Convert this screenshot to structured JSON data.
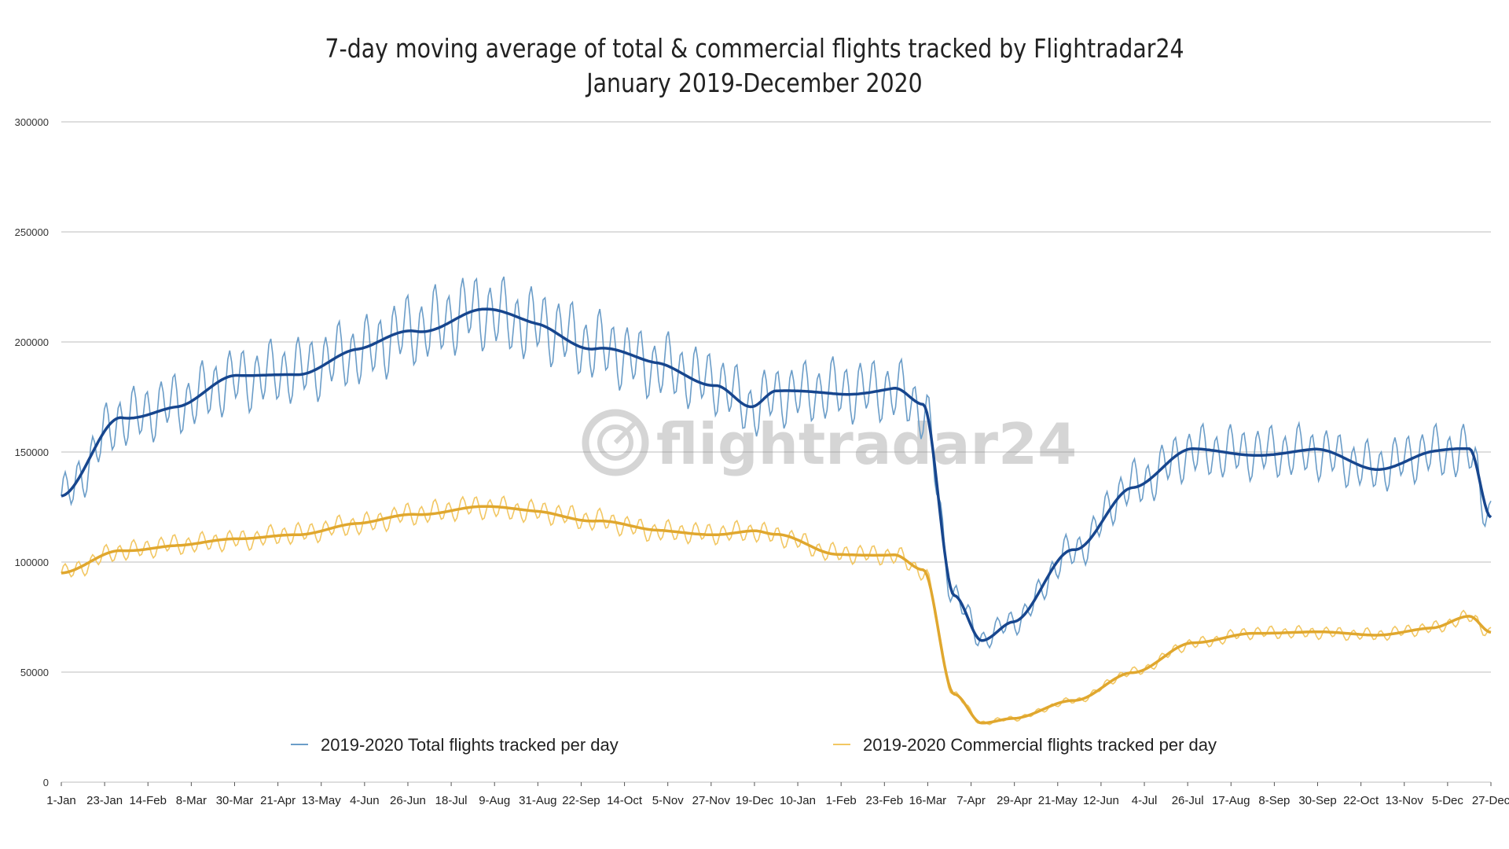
{
  "chart_data": {
    "type": "line",
    "title": "7-day moving average of total & commercial flights tracked by Flightradar24",
    "subtitle": "January 2019-December 2020",
    "xlabel": "",
    "ylabel": "",
    "ylim": [
      0,
      300000
    ],
    "yticks": [
      "0",
      "50000",
      "100000",
      "150000",
      "200000",
      "250000",
      "300000"
    ],
    "grid": true,
    "legend_position": "bottom",
    "watermark": "flightradar24",
    "x_tick_labels": [
      "1-Jan",
      "23-Jan",
      "14-Feb",
      "8-Mar",
      "30-Mar",
      "21-Apr",
      "13-May",
      "4-Jun",
      "26-Jun",
      "18-Jul",
      "9-Aug",
      "31-Aug",
      "22-Sep",
      "14-Oct",
      "5-Nov",
      "27-Nov",
      "19-Dec",
      "10-Jan",
      "1-Feb",
      "23-Feb",
      "16-Mar",
      "7-Apr",
      "29-Apr",
      "21-May",
      "12-Jun",
      "4-Jul",
      "26-Jul",
      "17-Aug",
      "8-Sep",
      "30-Sep",
      "22-Oct",
      "13-Nov",
      "5-Dec",
      "27-Dec"
    ],
    "x": [
      "2019-01-01",
      "2019-02-01",
      "2019-03-01",
      "2019-04-01",
      "2019-05-01",
      "2019-06-01",
      "2019-07-01",
      "2019-08-01",
      "2019-09-01",
      "2019-10-01",
      "2019-11-01",
      "2019-12-01",
      "2019-12-20",
      "2020-01-01",
      "2020-02-01",
      "2020-03-01",
      "2020-03-16",
      "2020-04-01",
      "2020-04-15",
      "2020-05-01",
      "2020-06-01",
      "2020-07-01",
      "2020-08-01",
      "2020-09-01",
      "2020-10-01",
      "2020-11-01",
      "2020-12-01",
      "2020-12-20",
      "2020-12-31"
    ],
    "series": [
      {
        "name": "2019-2020 Total flights tracked per day",
        "color": "#6b9dc8",
        "values": [
          130000,
          165000,
          172000,
          183000,
          187000,
          195000,
          206000,
          214000,
          208000,
          198000,
          189000,
          182000,
          170000,
          176000,
          178000,
          178000,
          170000,
          85000,
          65000,
          73000,
          105000,
          135000,
          150000,
          150000,
          150000,
          143000,
          150000,
          150000,
          120000
        ]
      },
      {
        "name": "2019-2020 Commercial flights tracked per day",
        "color": "#f2c763",
        "values": [
          95000,
          105000,
          108000,
          110000,
          113000,
          117000,
          122000,
          125000,
          123000,
          119000,
          114000,
          113000,
          114000,
          112000,
          104000,
          103000,
          96000,
          40000,
          27000,
          29000,
          37000,
          50000,
          63000,
          68000,
          68000,
          67000,
          70000,
          75000,
          68000
        ]
      }
    ],
    "moving_average_colors": [
      "#17468e",
      "#e0a72e"
    ]
  }
}
